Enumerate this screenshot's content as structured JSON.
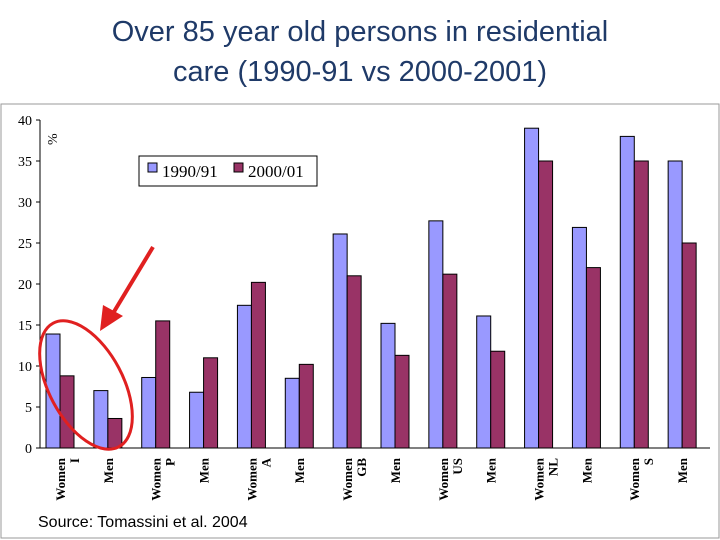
{
  "title_line1": "Over 85 year old persons in residential",
  "title_line2": "care  (1990-91 vs 2000-2001)",
  "source": "Source: Tomassini et al. 2004",
  "chart_data": {
    "type": "bar",
    "ylabel": "%",
    "ylim": [
      0,
      40
    ],
    "yticks": [
      0,
      5,
      10,
      15,
      20,
      25,
      30,
      35,
      40
    ],
    "grid": false,
    "legend_position": "top-left",
    "categories": [
      [
        "Women",
        "I"
      ],
      [
        "Men"
      ],
      [
        "Women",
        "P"
      ],
      [
        "Men"
      ],
      [
        "Women",
        "A"
      ],
      [
        "Men"
      ],
      [
        "Women",
        "GB"
      ],
      [
        "Men"
      ],
      [
        "Women",
        "US"
      ],
      [
        "Men"
      ],
      [
        "Women",
        "NL"
      ],
      [
        "Men"
      ],
      [
        "Women",
        "S"
      ],
      [
        "Men"
      ]
    ],
    "series": [
      {
        "name": "1990/91",
        "color": "#9999ff",
        "values": [
          13.9,
          7.0,
          8.6,
          6.8,
          17.4,
          8.5,
          26.1,
          15.2,
          27.7,
          16.1,
          39.0,
          26.9,
          38.0,
          35.0
        ]
      },
      {
        "name": "2000/01",
        "color": "#993366",
        "values": [
          8.8,
          3.6,
          15.5,
          11.0,
          20.2,
          10.2,
          21.0,
          11.3,
          21.2,
          11.8,
          35.0,
          22.0,
          35.0,
          25.0
        ]
      }
    ],
    "annotations": [
      {
        "type": "arrow",
        "color": "#e02020"
      },
      {
        "type": "ellipse",
        "color": "#e02020"
      }
    ]
  }
}
